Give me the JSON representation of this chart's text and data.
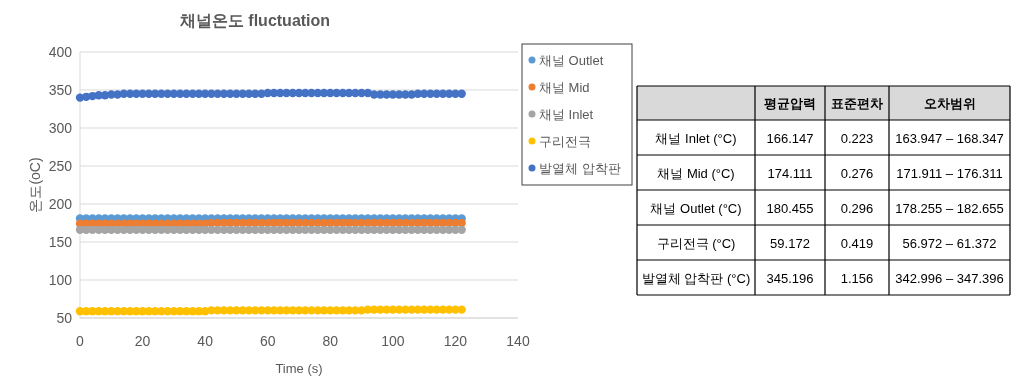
{
  "chart_data": [
    {
      "type": "scatter",
      "title": "채널온도 fluctuation",
      "xlabel": "Time (s)",
      "ylabel": "온도(oC)",
      "xlim": [
        0,
        140
      ],
      "xticks": [
        0,
        20,
        40,
        60,
        80,
        100,
        120,
        140
      ],
      "ylim": [
        50,
        400
      ],
      "yticks": [
        50,
        100,
        150,
        200,
        250,
        300,
        350,
        400
      ],
      "grid": "y",
      "legend": "right",
      "marker": "circle",
      "x": [
        0,
        2,
        4,
        6,
        8,
        10,
        12,
        14,
        16,
        18,
        20,
        22,
        24,
        26,
        28,
        30,
        32,
        34,
        36,
        38,
        40,
        42,
        44,
        46,
        48,
        50,
        52,
        54,
        56,
        58,
        60,
        62,
        64,
        66,
        68,
        70,
        72,
        74,
        76,
        78,
        80,
        82,
        84,
        86,
        88,
        90,
        92,
        94,
        96,
        98,
        100,
        102,
        104,
        106,
        108,
        110,
        112,
        114,
        116,
        118,
        120,
        122
      ],
      "series": [
        {
          "name": "채널 Outlet",
          "color": "#5b9bd5",
          "values": [
            181,
            181,
            181,
            181,
            181,
            181,
            181,
            181,
            181,
            181,
            181,
            181,
            181,
            181,
            181,
            181,
            181,
            181,
            181,
            181,
            181,
            181,
            181,
            181,
            181,
            181,
            181,
            181,
            181,
            181,
            181,
            181,
            181,
            181,
            181,
            181,
            181,
            181,
            181,
            181,
            181,
            181,
            181,
            181,
            181,
            181,
            181,
            181,
            181,
            181,
            181,
            181,
            181,
            181,
            181,
            181,
            181,
            181,
            181,
            181,
            181,
            181
          ]
        },
        {
          "name": "채널 Mid",
          "color": "#ed7d31",
          "values": [
            174,
            174,
            174,
            174,
            174,
            174,
            174,
            174,
            174,
            174,
            174,
            174,
            174,
            174,
            174,
            174,
            174,
            174,
            174,
            174,
            174,
            175,
            175,
            175,
            175,
            175,
            175,
            175,
            175,
            175,
            175,
            175,
            175,
            175,
            175,
            175,
            175,
            175,
            175,
            175,
            175,
            175,
            175,
            175,
            175,
            175,
            175,
            175,
            175,
            175,
            175,
            175,
            175,
            175,
            175,
            175,
            175,
            175,
            175,
            175,
            175,
            175
          ]
        },
        {
          "name": "채널 Inlet",
          "color": "#a5a5a5",
          "values": [
            166,
            166,
            166,
            166,
            166,
            166,
            166,
            166,
            166,
            166,
            166,
            166,
            166,
            166,
            166,
            166,
            166,
            166,
            166,
            166,
            166,
            166,
            166,
            166,
            166,
            166,
            166,
            166,
            166,
            166,
            166,
            166,
            166,
            166,
            166,
            166,
            166,
            166,
            166,
            166,
            166,
            166,
            166,
            166,
            166,
            166,
            166,
            166,
            166,
            166,
            166,
            166,
            166,
            166,
            166,
            166,
            166,
            166,
            166,
            166,
            166,
            166
          ]
        },
        {
          "name": "구리전극",
          "color": "#ffc000",
          "values": [
            59,
            59,
            59,
            59,
            59,
            59,
            59,
            59,
            59,
            59,
            59,
            59,
            59,
            59,
            59,
            59,
            59,
            59,
            59,
            59,
            59,
            60,
            60,
            60,
            60,
            60,
            60,
            60,
            60,
            60,
            60,
            60,
            60,
            60,
            60,
            60,
            60,
            60,
            60,
            60,
            60,
            60,
            60,
            60,
            60,
            60,
            61,
            61,
            61,
            61,
            61,
            61,
            61,
            61,
            61,
            61,
            61,
            61,
            61,
            61,
            61,
            61
          ]
        },
        {
          "name": "발열체 압착판",
          "color": "#4472c4",
          "values": [
            340,
            341,
            342,
            343,
            343,
            344,
            344,
            345,
            345,
            345,
            345,
            345,
            345,
            345,
            345,
            345,
            345,
            345,
            345,
            345,
            345,
            345,
            345,
            345,
            345,
            345,
            345,
            345,
            345,
            345,
            346,
            346,
            346,
            346,
            346,
            346,
            346,
            346,
            346,
            346,
            346,
            346,
            346,
            346,
            346,
            346,
            346,
            344,
            344,
            344,
            344,
            344,
            344,
            344,
            345,
            345,
            345,
            345,
            345,
            345,
            345,
            345
          ]
        }
      ]
    },
    {
      "type": "other",
      "categories": [
        "평균압력",
        "표준편차",
        "오차범위"
      ],
      "y_categories": [
        "채널 Inlet (°C)",
        "채널 Mid (°C)",
        "채널 Outlet (°C)",
        "구리전극 (°C)",
        "발열체 압착판 (°C)"
      ],
      "cell_labels": [
        [
          "166.147",
          "0.223",
          "163.947 – 168.347"
        ],
        [
          "174.111",
          "0.276",
          "171.911 – 176.311"
        ],
        [
          "180.455",
          "0.296",
          "178.255 – 182.655"
        ],
        [
          "59.172",
          "0.419",
          "56.972 – 61.372"
        ],
        [
          "345.196",
          "1.156",
          "342.996 – 347.396"
        ]
      ]
    }
  ]
}
